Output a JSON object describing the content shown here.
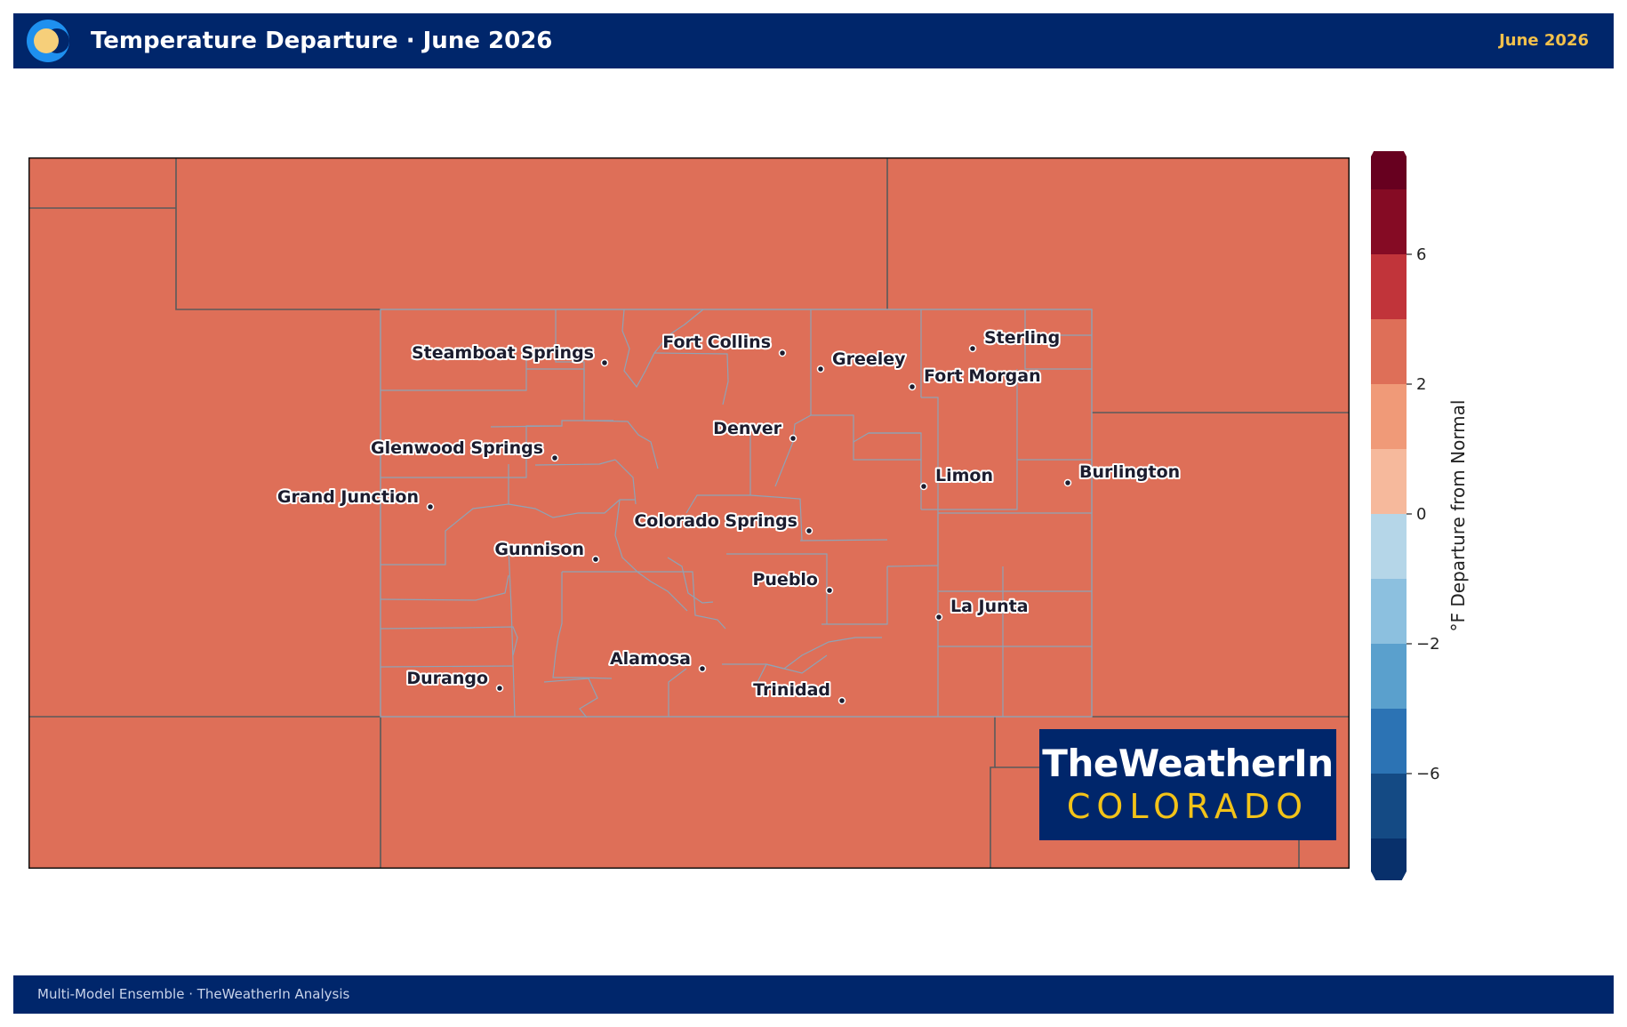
{
  "header": {
    "title": "Temperature Departure · June 2026",
    "date": "June 2026",
    "logo_icon": "crescent-sun-logo-icon"
  },
  "map": {
    "region": "Colorado",
    "fill_color": "#de6f58",
    "county_line_color": "#8fa3b5",
    "state_line_color": "#555555",
    "cities": [
      {
        "name": "Steamboat Springs"
      },
      {
        "name": "Fort Collins"
      },
      {
        "name": "Greeley"
      },
      {
        "name": "Sterling"
      },
      {
        "name": "Fort Morgan"
      },
      {
        "name": "Denver"
      },
      {
        "name": "Glenwood Springs"
      },
      {
        "name": "Limon"
      },
      {
        "name": "Burlington"
      },
      {
        "name": "Grand Junction"
      },
      {
        "name": "Colorado Springs"
      },
      {
        "name": "Gunnison"
      },
      {
        "name": "Pueblo"
      },
      {
        "name": "La Junta"
      },
      {
        "name": "Alamosa"
      },
      {
        "name": "Durango"
      },
      {
        "name": "Trinidad"
      }
    ]
  },
  "brand": {
    "line1": "TheWeatherIn",
    "line2": "COLORADO"
  },
  "colorbar": {
    "label": "°F Departure from Normal",
    "ticks": [
      "6",
      "2",
      "0",
      "−2",
      "−6"
    ],
    "colors": [
      "#08306b",
      "#144a84",
      "#2c73b4",
      "#5aa0cd",
      "#8cc0df",
      "#b5d6e8",
      "#f6b99c",
      "#f09a78",
      "#de6f58",
      "#c1343a",
      "#850b24",
      "#67001f"
    ]
  },
  "footer": {
    "text": "Multi-Model Ensemble  ·  TheWeatherIn Analysis"
  }
}
